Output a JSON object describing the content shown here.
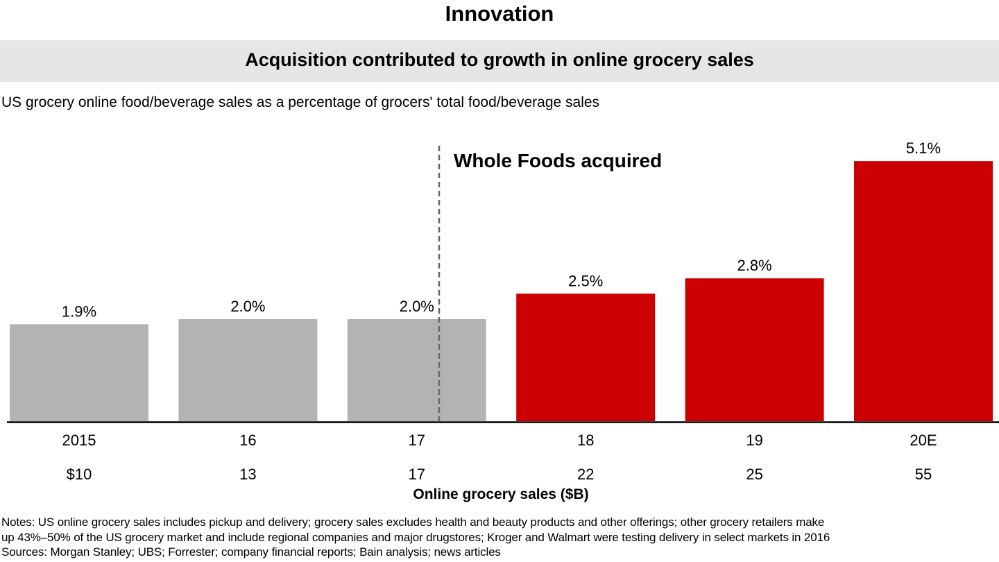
{
  "header": {
    "title": "Innovation",
    "subtitle": "Acquisition contributed to growth in online grocery sales",
    "description": "US grocery online food/beverage sales as a percentage of grocers' total food/beverage sales"
  },
  "chart_data": {
    "type": "bar",
    "title": "Acquisition contributed to growth in online grocery sales",
    "ylabel": "US grocery online food/beverage sales as a percentage of grocers' total food/beverage sales",
    "categories": [
      "2015",
      "16",
      "17",
      "18",
      "19",
      "20E"
    ],
    "values": [
      1.9,
      2.0,
      2.0,
      2.5,
      2.8,
      5.1
    ],
    "value_labels": [
      "1.9%",
      "2.0%",
      "2.0%",
      "2.5%",
      "2.8%",
      "5.1%"
    ],
    "secondary_labels": [
      "$10",
      "13",
      "17",
      "22",
      "25",
      "55"
    ],
    "secondary_axis_label": "Online grocery sales ($B)",
    "ylim": [
      0,
      5.1
    ],
    "grid": false,
    "colors": [
      "#b3b3b3",
      "#b3b3b3",
      "#b3b3b3",
      "#cc0000",
      "#cc0000",
      "#cc0000"
    ],
    "annotation": {
      "text": "Whole Foods acquired",
      "between": [
        "17",
        "18"
      ]
    }
  },
  "footer": {
    "notes_line1": "Notes: US online grocery sales includes pickup and delivery; grocery sales excludes health and beauty products and other offerings; other grocery retailers make",
    "notes_line2": "up 43%–50% of the US grocery market and include regional companies and major drugstores; Kroger and Walmart were testing delivery in select markets in 2016",
    "sources": "Sources: Morgan Stanley; UBS; Forrester; company financial reports; Bain analysis; news articles"
  }
}
